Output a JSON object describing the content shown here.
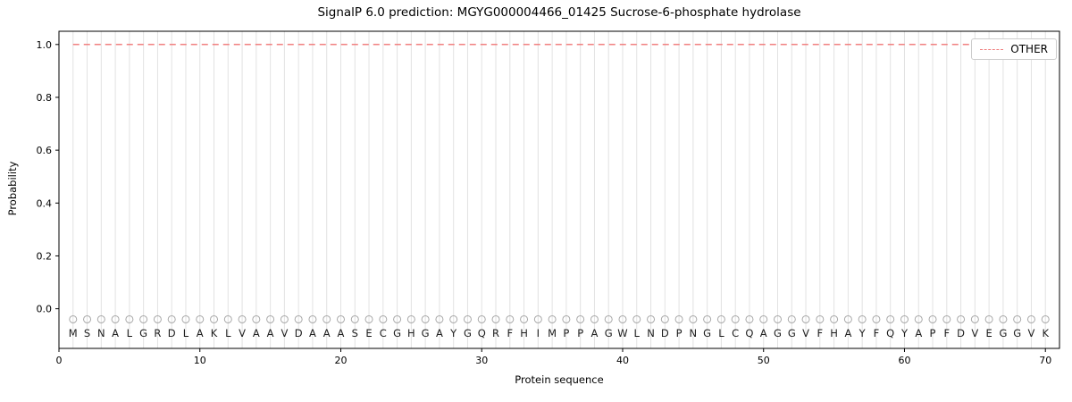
{
  "chart_data": {
    "type": "line",
    "title": "SignalP 6.0 prediction: MGYG000004466_01425 Sucrose-6-phosphate hydrolase",
    "xlabel": "Protein sequence",
    "ylabel": "Probability",
    "xlim": [
      0,
      71
    ],
    "ylim": [
      -0.15,
      1.05
    ],
    "x_ticks": [
      0,
      10,
      20,
      30,
      40,
      50,
      60,
      70
    ],
    "y_ticks": [
      0.0,
      0.2,
      0.4,
      0.6,
      0.8,
      1.0
    ],
    "grid": {
      "vertical_per_residue": true,
      "color": "#e2e2e2"
    },
    "legend": {
      "position": "upper-right",
      "entries": [
        {
          "label": "OTHER",
          "color": "#f08080",
          "linestyle": "dashed"
        }
      ]
    },
    "sequence": "MSNALGRDLAKLVAAVDAAASECGHGAYGQRFHIMPPAGWLNDPNGLCQAGGVFHAYFQYAPFDVEGGVK",
    "series": [
      {
        "name": "OTHER",
        "color": "#f08080",
        "linestyle": "dashed",
        "x_start": 1,
        "x_end": 70,
        "values": [
          1.0,
          1.0,
          1.0,
          1.0,
          1.0,
          1.0,
          1.0,
          1.0,
          1.0,
          1.0,
          1.0,
          1.0,
          1.0,
          1.0,
          1.0,
          1.0,
          1.0,
          1.0,
          1.0,
          1.0,
          1.0,
          1.0,
          1.0,
          1.0,
          1.0,
          1.0,
          1.0,
          1.0,
          1.0,
          1.0,
          1.0,
          1.0,
          1.0,
          1.0,
          1.0,
          1.0,
          1.0,
          1.0,
          1.0,
          1.0,
          1.0,
          1.0,
          1.0,
          1.0,
          1.0,
          1.0,
          1.0,
          1.0,
          1.0,
          1.0,
          1.0,
          1.0,
          1.0,
          1.0,
          1.0,
          1.0,
          1.0,
          1.0,
          1.0,
          1.0,
          1.0,
          1.0,
          1.0,
          1.0,
          1.0,
          1.0,
          1.0,
          1.0,
          1.0,
          1.0
        ]
      }
    ],
    "residue_markers": {
      "shape": "open-circle",
      "color": "#a8a8a8",
      "y": -0.04
    }
  }
}
